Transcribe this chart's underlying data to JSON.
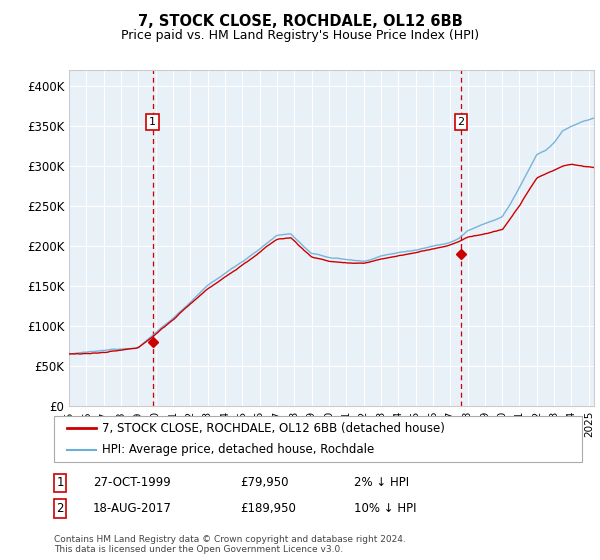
{
  "title": "7, STOCK CLOSE, ROCHDALE, OL12 6BB",
  "subtitle": "Price paid vs. HM Land Registry's House Price Index (HPI)",
  "ylim": [
    0,
    420000
  ],
  "xlim_start": 1995.0,
  "xlim_end": 2025.3,
  "yticks": [
    0,
    50000,
    100000,
    150000,
    200000,
    250000,
    300000,
    350000,
    400000
  ],
  "ytick_labels": [
    "£0",
    "£50K",
    "£100K",
    "£150K",
    "£200K",
    "£250K",
    "£300K",
    "£350K",
    "£400K"
  ],
  "sale1_year": 1999.82,
  "sale1_price": 79950,
  "sale2_year": 2017.63,
  "sale2_price": 189950,
  "plot_bg_color": "#e8f0f8",
  "grid_color": "#ffffff",
  "hpi_color": "#6baed6",
  "price_paid_color": "#cc0000",
  "vline_color": "#cc0000",
  "legend_label1": "7, STOCK CLOSE, ROCHDALE, OL12 6BB (detached house)",
  "legend_label2": "HPI: Average price, detached house, Rochdale",
  "footnote": "Contains HM Land Registry data © Crown copyright and database right 2024.\nThis data is licensed under the Open Government Licence v3.0.",
  "table_row1": [
    "1",
    "27-OCT-1999",
    "£79,950",
    "2% ↓ HPI"
  ],
  "table_row2": [
    "2",
    "18-AUG-2017",
    "£189,950",
    "10% ↓ HPI"
  ]
}
